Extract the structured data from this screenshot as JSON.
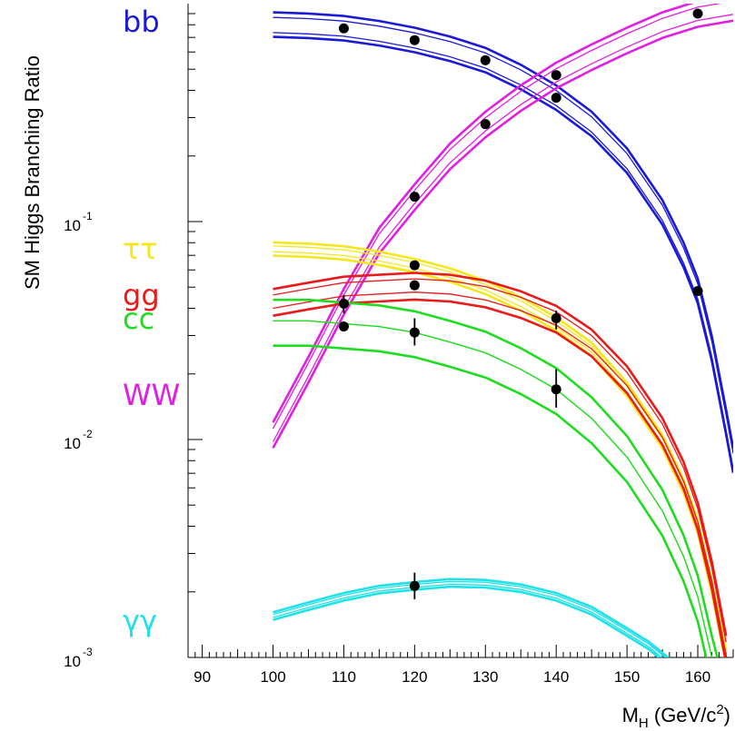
{
  "chart_data": {
    "type": "line",
    "ylabel": "SM Higgs Branching Ratio",
    "xlabel": {
      "main": "M",
      "sub": "H",
      "units_pre": " (GeV/c",
      "units_sup": "2",
      "units_post": ")"
    },
    "xlim": [
      88,
      165
    ],
    "ylim": [
      0.001,
      1.0
    ],
    "yscale": "log",
    "x_ticks": [
      "90",
      "100",
      "110",
      "120",
      "130",
      "140",
      "150",
      "160"
    ],
    "y_ticks": [
      {
        "value": 0.001,
        "base": "10",
        "exp": "-3"
      },
      {
        "value": 0.01,
        "base": "10",
        "exp": "-2"
      },
      {
        "value": 0.1,
        "base": "10",
        "exp": "-1"
      }
    ],
    "grid": false,
    "legend_placement": "left-outside",
    "series": [
      {
        "name": "bb",
        "color": "#1a1ad6",
        "x": [
          100,
          105,
          110,
          115,
          120,
          125,
          130,
          135,
          140,
          145,
          150,
          155,
          158,
          160,
          162,
          164,
          165
        ],
        "center": [
          0.8,
          0.79,
          0.77,
          0.73,
          0.68,
          0.62,
          0.55,
          0.46,
          0.37,
          0.28,
          0.19,
          0.11,
          0.07,
          0.048,
          0.026,
          0.012,
          0.008
        ],
        "band": [
          0.88,
          0.92,
          1.08,
          1.14
        ],
        "points": [
          {
            "x": 110,
            "y": 0.77
          },
          {
            "x": 120,
            "y": 0.68
          },
          {
            "x": 130,
            "y": 0.55
          },
          {
            "x": 140,
            "y": 0.37
          },
          {
            "x": 160,
            "y": 0.048
          }
        ]
      },
      {
        "name": "WW",
        "color": "#e020e0",
        "x": [
          100,
          105,
          110,
          115,
          120,
          125,
          130,
          135,
          140,
          145,
          150,
          155,
          160,
          165
        ],
        "center": [
          0.0105,
          0.021,
          0.043,
          0.082,
          0.13,
          0.2,
          0.28,
          0.37,
          0.47,
          0.57,
          0.68,
          0.8,
          0.9,
          0.96
        ],
        "band": [
          0.87,
          0.93,
          1.07,
          1.14
        ],
        "points": [
          {
            "x": 110,
            "y": 0.042
          },
          {
            "x": 120,
            "y": 0.13
          },
          {
            "x": 130,
            "y": 0.28
          },
          {
            "x": 140,
            "y": 0.47
          },
          {
            "x": 160,
            "y": 0.9
          }
        ]
      },
      {
        "name": "ττ",
        "color": "#f5e61e",
        "x": [
          100,
          105,
          110,
          115,
          120,
          125,
          130,
          135,
          140,
          145,
          150,
          155,
          158,
          160,
          162,
          164
        ],
        "center": [
          0.075,
          0.074,
          0.072,
          0.068,
          0.063,
          0.057,
          0.05,
          0.042,
          0.034,
          0.026,
          0.017,
          0.0098,
          0.0061,
          0.004,
          0.0021,
          0.001
        ],
        "band": [
          0.93,
          0.97,
          1.03,
          1.07
        ],
        "points": [
          {
            "x": 120,
            "y": 0.063
          }
        ]
      },
      {
        "name": "gg",
        "color": "#e81a1a",
        "x": [
          100,
          105,
          110,
          115,
          120,
          125,
          130,
          135,
          140,
          145,
          150,
          155,
          158,
          160,
          162,
          164
        ],
        "center": [
          0.043,
          0.046,
          0.049,
          0.05,
          0.051,
          0.05,
          0.047,
          0.042,
          0.036,
          0.028,
          0.019,
          0.011,
          0.0069,
          0.0045,
          0.0024,
          0.0011
        ],
        "band": [
          0.86,
          0.93,
          1.07,
          1.14
        ],
        "points": [
          {
            "x": 120,
            "y": 0.051
          },
          {
            "x": 140,
            "y": 0.036
          }
        ]
      },
      {
        "name": "cc",
        "color": "#20dc20",
        "x": [
          100,
          105,
          110,
          115,
          120,
          125,
          130,
          135,
          140,
          145,
          150,
          155,
          158,
          160,
          162,
          163
        ],
        "center": [
          0.035,
          0.035,
          0.034,
          0.033,
          0.031,
          0.028,
          0.025,
          0.021,
          0.017,
          0.0125,
          0.0083,
          0.0047,
          0.0029,
          0.0019,
          0.001,
          0.00075
        ],
        "band": [
          0.77,
          1.0,
          1.0,
          1.25
        ],
        "points": [
          {
            "x": 110,
            "y": 0.033
          },
          {
            "x": 120,
            "y": 0.031
          },
          {
            "x": 140,
            "y": 0.017
          }
        ]
      },
      {
        "name": "γγ",
        "color": "#20e0e8",
        "x": [
          100,
          105,
          110,
          115,
          120,
          125,
          130,
          135,
          140,
          145,
          150,
          153,
          156
        ],
        "center": [
          0.00155,
          0.00172,
          0.0019,
          0.00205,
          0.00213,
          0.0022,
          0.00218,
          0.00208,
          0.0019,
          0.00164,
          0.00131,
          0.00114,
          0.00095
        ],
        "band": [
          0.96,
          0.985,
          1.015,
          1.04
        ],
        "points": [
          {
            "x": 120,
            "y": 0.00213
          }
        ]
      }
    ],
    "error_bars": [
      {
        "x": 110,
        "y": 0.042,
        "lo": 0.038,
        "hi": 0.046
      },
      {
        "x": 120,
        "y": 0.031,
        "lo": 0.027,
        "hi": 0.036
      },
      {
        "x": 120,
        "y": 0.00213,
        "lo": 0.00185,
        "hi": 0.00245
      },
      {
        "x": 140,
        "y": 0.035,
        "lo": 0.032,
        "hi": 0.039
      },
      {
        "x": 140,
        "y": 0.017,
        "lo": 0.014,
        "hi": 0.021
      }
    ]
  }
}
